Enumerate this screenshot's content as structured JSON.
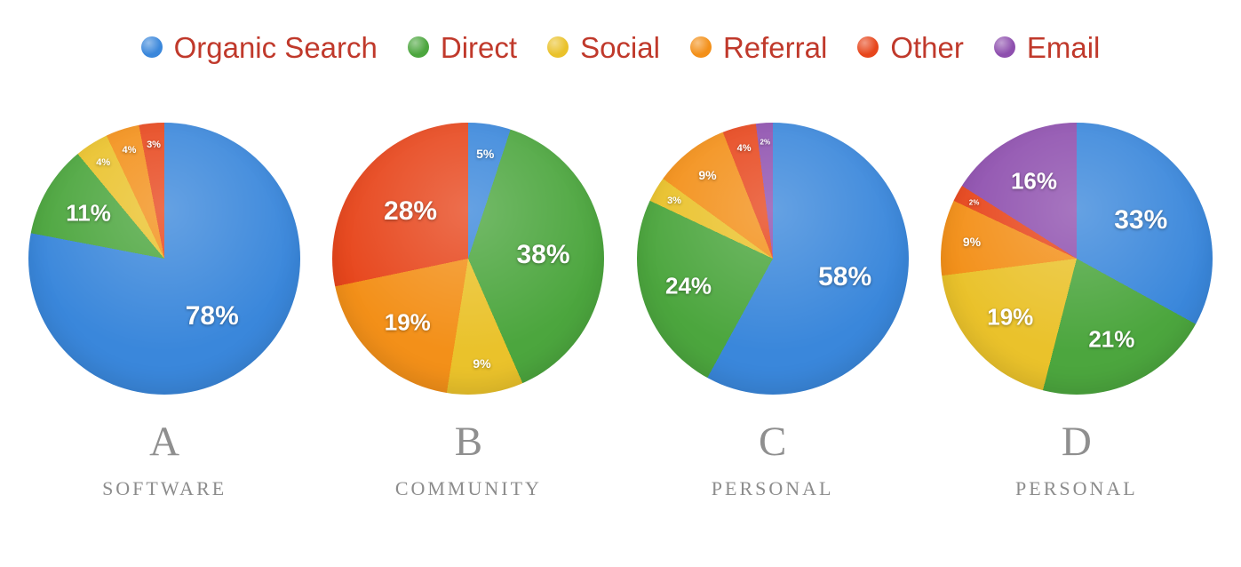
{
  "page": {
    "background": "#ffffff"
  },
  "legend": {
    "text_color": "#C0392B",
    "items": [
      {
        "label": "Organic Search",
        "color": "#3A87DB"
      },
      {
        "label": "Direct",
        "color": "#4CA63E"
      },
      {
        "label": "Social",
        "color": "#EAC22B"
      },
      {
        "label": "Referral",
        "color": "#F39019"
      },
      {
        "label": "Other",
        "color": "#E7461C"
      },
      {
        "label": "Email",
        "color": "#8E4FAE"
      }
    ]
  },
  "chart_data": [
    {
      "type": "pie",
      "letter": "A",
      "subtitle": "SOFTWARE",
      "start_angle_deg": 0,
      "direction": "clockwise",
      "slices": [
        {
          "name": "Organic Search",
          "value": 78,
          "label": "78%"
        },
        {
          "name": "Direct",
          "value": 11,
          "label": "11%"
        },
        {
          "name": "Social",
          "value": 4,
          "label": "4%"
        },
        {
          "name": "Referral",
          "value": 4,
          "label": "4%"
        },
        {
          "name": "Other",
          "value": 3,
          "label": "3%"
        }
      ]
    },
    {
      "type": "pie",
      "letter": "B",
      "subtitle": "COMMUNITY",
      "start_angle_deg": 0,
      "direction": "clockwise",
      "slices": [
        {
          "name": "Organic Search",
          "value": 5,
          "label": "5%"
        },
        {
          "name": "Direct",
          "value": 38,
          "label": "38%"
        },
        {
          "name": "Social",
          "value": 9,
          "label": "9%"
        },
        {
          "name": "Referral",
          "value": 19,
          "label": "19%"
        },
        {
          "name": "Other",
          "value": 28,
          "label": "28%"
        }
      ]
    },
    {
      "type": "pie",
      "letter": "C",
      "subtitle": "PERSONAL",
      "start_angle_deg": 0,
      "direction": "clockwise",
      "slices": [
        {
          "name": "Organic Search",
          "value": 58,
          "label": "58%"
        },
        {
          "name": "Direct",
          "value": 24,
          "label": "24%"
        },
        {
          "name": "Social",
          "value": 3,
          "label": "3%"
        },
        {
          "name": "Referral",
          "value": 9,
          "label": "9%"
        },
        {
          "name": "Other",
          "value": 4,
          "label": "4%"
        },
        {
          "name": "Email",
          "value": 2,
          "label": "2%"
        }
      ]
    },
    {
      "type": "pie",
      "letter": "D",
      "subtitle": "PERSONAL",
      "start_angle_deg": 0,
      "direction": "clockwise",
      "slices": [
        {
          "name": "Organic Search",
          "value": 33,
          "label": "33%"
        },
        {
          "name": "Direct",
          "value": 21,
          "label": "21%"
        },
        {
          "name": "Social",
          "value": 19,
          "label": "19%"
        },
        {
          "name": "Referral",
          "value": 9,
          "label": "9%"
        },
        {
          "name": "Other",
          "value": 2,
          "label": "2%"
        },
        {
          "name": "Email",
          "value": 16,
          "label": "16%"
        }
      ]
    }
  ]
}
